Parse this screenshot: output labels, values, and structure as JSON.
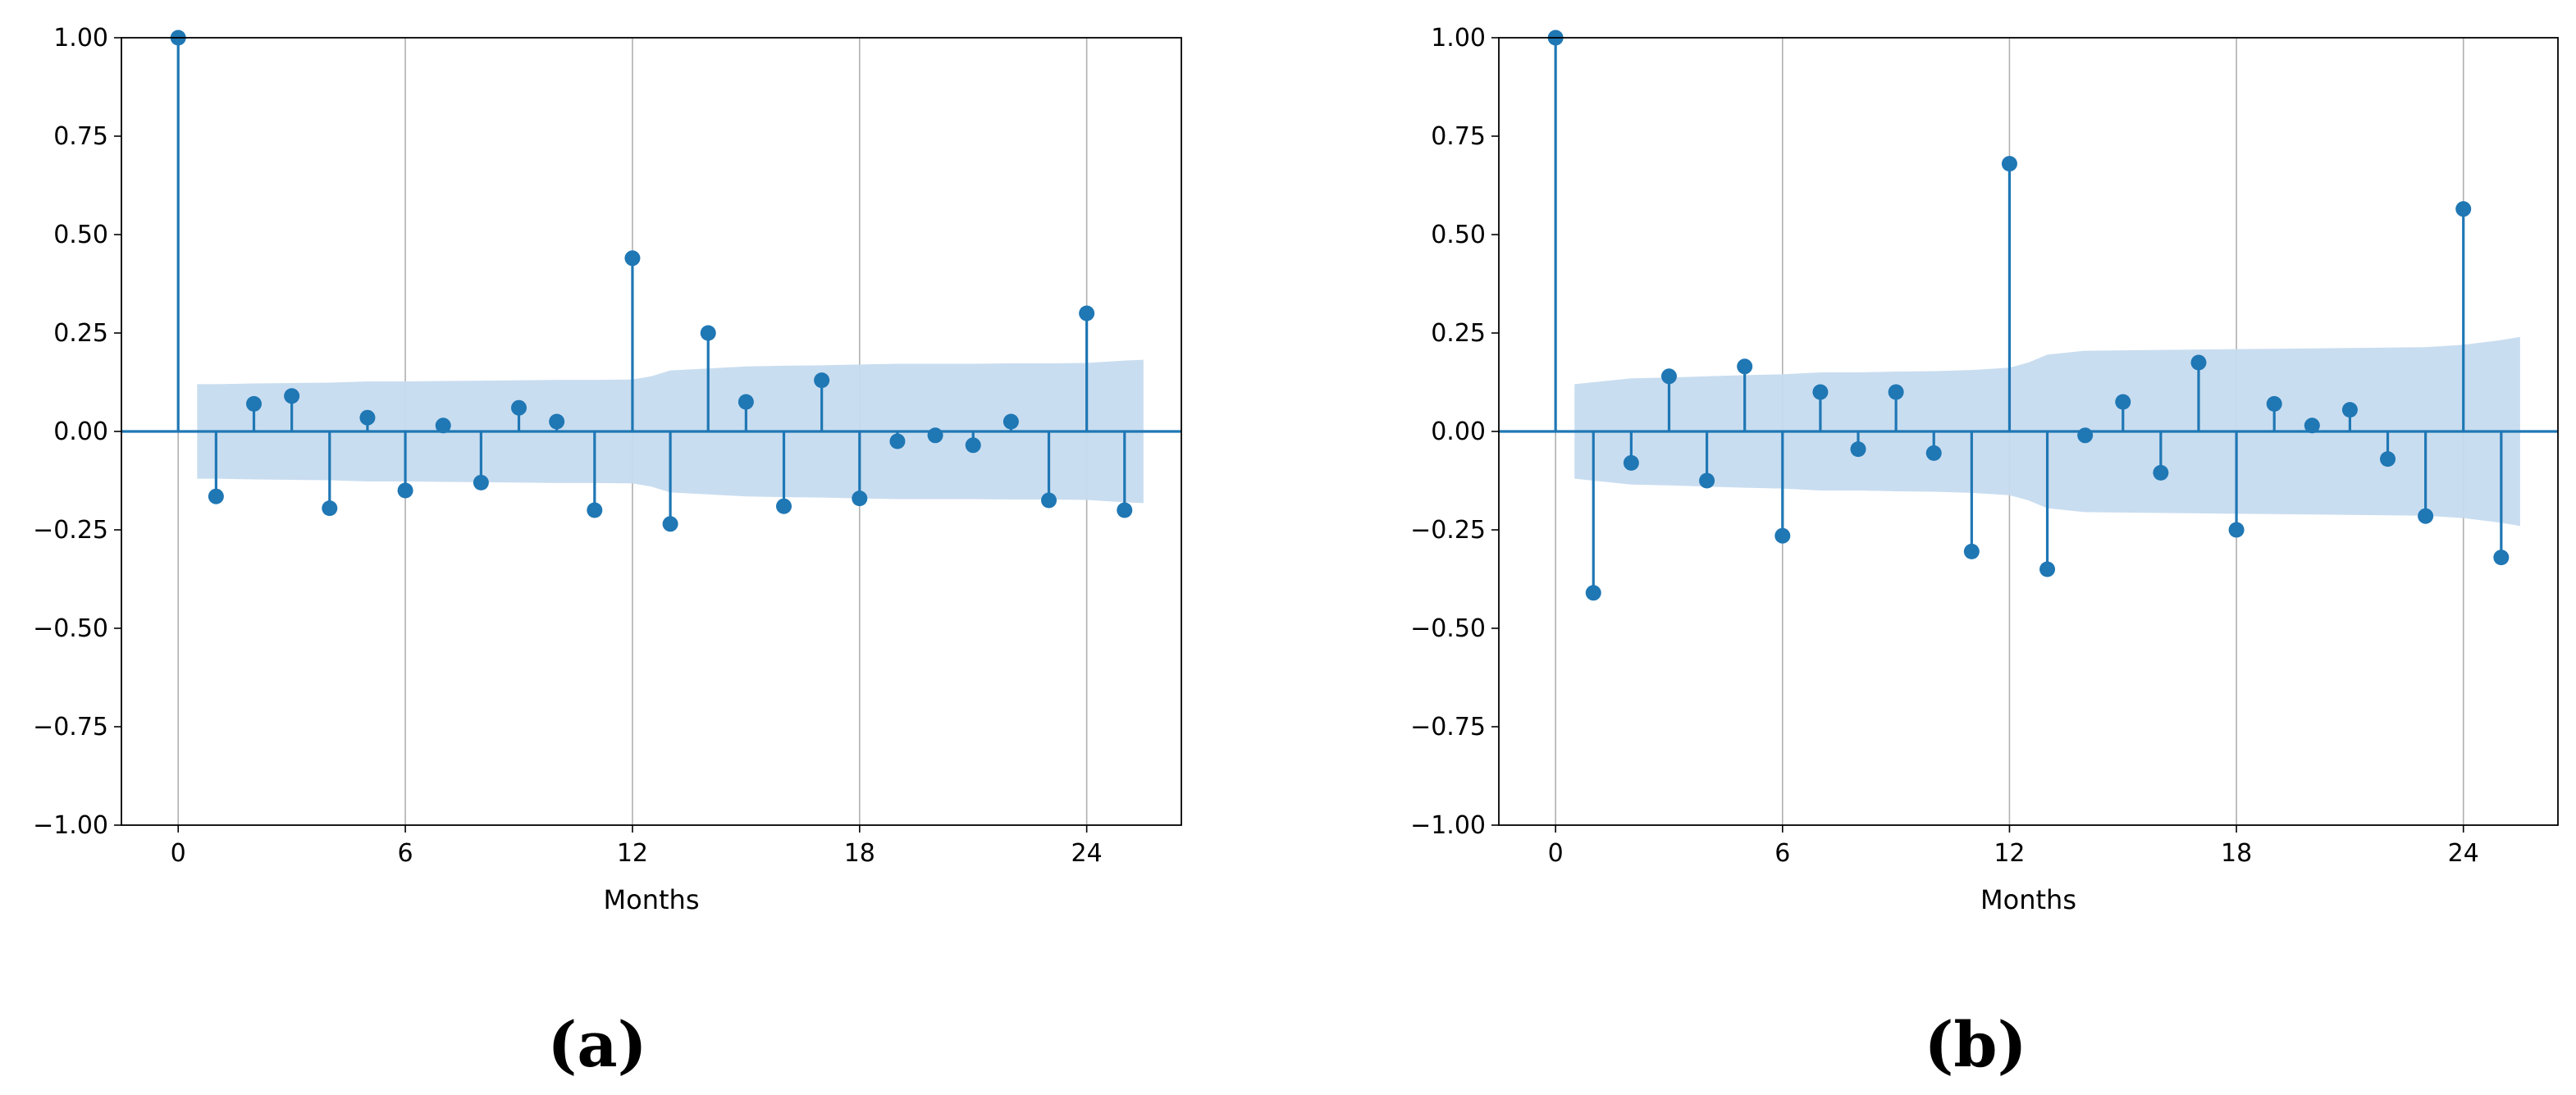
{
  "chart_data": [
    {
      "type": "stem",
      "panel_label": "(a)",
      "xlabel": "Months",
      "ylabel": "",
      "xlim": [
        -1.5,
        26.5
      ],
      "ylim": [
        -1.0,
        1.0
      ],
      "xticks": [
        0,
        6,
        12,
        18,
        24
      ],
      "yticks": [
        -1.0,
        -0.75,
        -0.5,
        -0.25,
        0.0,
        0.25,
        0.5,
        0.75,
        1.0
      ],
      "ytick_labels": [
        "−1.00",
        "−0.75",
        "−0.50",
        "−0.25",
        "0.00",
        "0.25",
        "0.50",
        "0.75",
        "1.00"
      ],
      "grid": "x",
      "stem_color": "#1f77b4",
      "band_color": "#c6dbef",
      "lags": [
        0,
        1,
        2,
        3,
        4,
        5,
        6,
        7,
        8,
        9,
        10,
        11,
        12,
        13,
        14,
        15,
        16,
        17,
        18,
        19,
        20,
        21,
        22,
        23,
        24,
        25
      ],
      "values": [
        1.0,
        -0.165,
        0.07,
        0.09,
        -0.195,
        0.035,
        -0.15,
        0.015,
        -0.13,
        0.06,
        0.025,
        -0.2,
        0.44,
        -0.235,
        0.25,
        0.075,
        -0.19,
        0.13,
        -0.17,
        -0.025,
        -0.01,
        -0.035,
        0.025,
        -0.175,
        0.3,
        -0.2
      ],
      "confidence_band": {
        "lags": [
          0.5,
          1,
          2,
          3,
          4,
          5,
          6,
          7,
          8,
          9,
          10,
          11,
          12,
          12.5,
          13,
          14,
          15,
          16,
          17,
          18,
          19,
          20,
          21,
          22,
          23,
          24,
          25,
          25.5
        ],
        "upper": [
          0.12,
          0.12,
          0.122,
          0.123,
          0.124,
          0.127,
          0.127,
          0.128,
          0.129,
          0.13,
          0.131,
          0.131,
          0.132,
          0.14,
          0.155,
          0.16,
          0.165,
          0.167,
          0.168,
          0.17,
          0.172,
          0.172,
          0.172,
          0.173,
          0.173,
          0.174,
          0.18,
          0.182
        ],
        "lower": [
          -0.12,
          -0.12,
          -0.122,
          -0.123,
          -0.124,
          -0.127,
          -0.127,
          -0.128,
          -0.129,
          -0.13,
          -0.131,
          -0.131,
          -0.132,
          -0.14,
          -0.155,
          -0.16,
          -0.165,
          -0.167,
          -0.168,
          -0.17,
          -0.172,
          -0.172,
          -0.172,
          -0.173,
          -0.173,
          -0.174,
          -0.18,
          -0.182
        ]
      }
    },
    {
      "type": "stem",
      "panel_label": "(b)",
      "xlabel": "Months",
      "ylabel": "",
      "xlim": [
        -1.5,
        26.5
      ],
      "ylim": [
        -1.0,
        1.0
      ],
      "xticks": [
        0,
        6,
        12,
        18,
        24
      ],
      "yticks": [
        -1.0,
        -0.75,
        -0.5,
        -0.25,
        0.0,
        0.25,
        0.5,
        0.75,
        1.0
      ],
      "ytick_labels": [
        "−1.00",
        "−0.75",
        "−0.50",
        "−0.25",
        "0.00",
        "0.25",
        "0.50",
        "0.75",
        "1.00"
      ],
      "grid": "x",
      "stem_color": "#1f77b4",
      "band_color": "#c6dbef",
      "lags": [
        0,
        1,
        2,
        3,
        4,
        5,
        6,
        7,
        8,
        9,
        10,
        11,
        12,
        13,
        14,
        15,
        16,
        17,
        18,
        19,
        20,
        21,
        22,
        23,
        24,
        25
      ],
      "values": [
        1.0,
        -0.41,
        -0.08,
        0.14,
        -0.125,
        0.165,
        -0.265,
        0.1,
        -0.045,
        0.1,
        -0.055,
        -0.305,
        0.68,
        -0.35,
        -0.01,
        0.075,
        -0.105,
        0.175,
        -0.25,
        0.07,
        0.015,
        0.055,
        -0.07,
        -0.215,
        0.565,
        -0.32
      ],
      "confidence_band": {
        "lags": [
          0.5,
          1,
          2,
          3,
          4,
          5,
          6,
          7,
          8,
          9,
          10,
          11,
          12,
          12.5,
          13,
          14,
          15,
          16,
          17,
          18,
          19,
          20,
          21,
          22,
          23,
          24,
          25,
          25.5
        ],
        "upper": [
          0.12,
          0.125,
          0.135,
          0.137,
          0.14,
          0.143,
          0.145,
          0.15,
          0.15,
          0.152,
          0.153,
          0.156,
          0.162,
          0.175,
          0.195,
          0.205,
          0.206,
          0.207,
          0.208,
          0.209,
          0.21,
          0.211,
          0.212,
          0.213,
          0.214,
          0.22,
          0.232,
          0.24
        ],
        "lower": [
          -0.12,
          -0.125,
          -0.135,
          -0.137,
          -0.14,
          -0.143,
          -0.145,
          -0.15,
          -0.15,
          -0.152,
          -0.153,
          -0.156,
          -0.162,
          -0.175,
          -0.195,
          -0.205,
          -0.206,
          -0.207,
          -0.208,
          -0.209,
          -0.21,
          -0.211,
          -0.212,
          -0.213,
          -0.214,
          -0.22,
          -0.232,
          -0.24
        ]
      }
    }
  ]
}
